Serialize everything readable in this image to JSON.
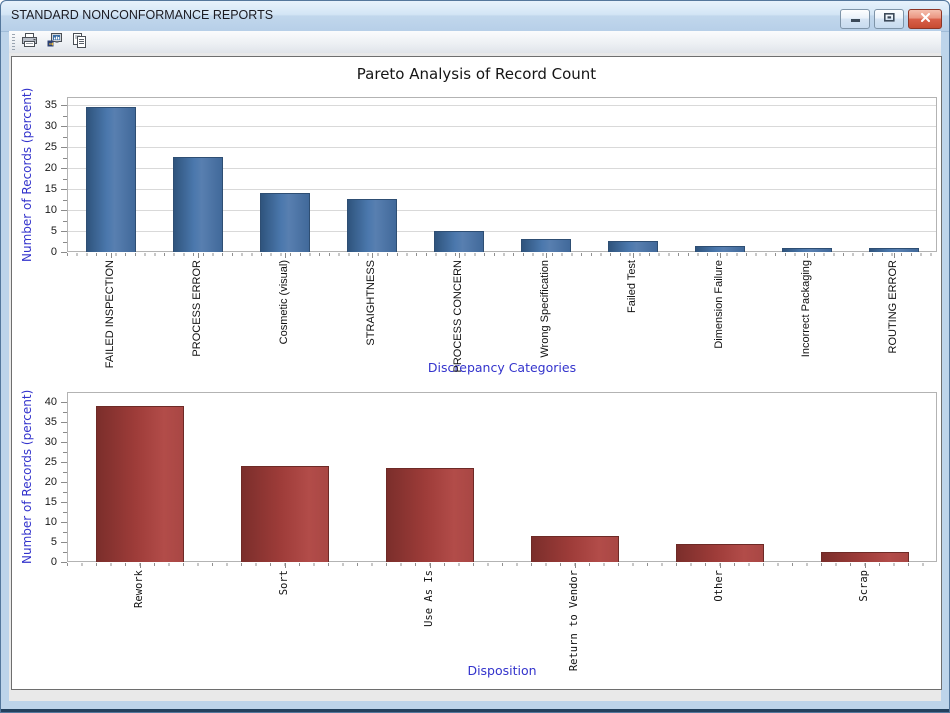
{
  "window": {
    "title": "STANDARD NONCONFORMANCE REPORTS",
    "controls": [
      {
        "name": "minimize-button",
        "icon": "minimize-icon"
      },
      {
        "name": "maximize-button",
        "icon": "restore-icon"
      },
      {
        "name": "close-button",
        "icon": "close-icon"
      }
    ]
  },
  "toolbar": {
    "buttons": [
      {
        "name": "print-button",
        "icon": "print-icon"
      },
      {
        "name": "export-graph-button",
        "icon": "export-graph-icon"
      },
      {
        "name": "copy-button",
        "icon": "copy-icon"
      }
    ]
  },
  "colors": {
    "bar_blue": "#4a77ad",
    "bar_red": "#a43d3d",
    "axis_title_blue": "#3333cc",
    "titlebar_blue": "#c9dcf0",
    "close_button_red": "#c74b31"
  },
  "chart_data": [
    {
      "type": "bar",
      "title": "Pareto Analysis of Record Count",
      "xlabel": "Discrepancy Categories",
      "ylabel": "Number of Records (percent)",
      "categories": [
        "FAILED INSPECTION",
        "PROCESS ERROR",
        "Cosmetic (visual)",
        "STRAIGHTNESS",
        "PROCESS CONCERN",
        "Wrong Specification",
        "Failed Test",
        "Dimension Failure",
        "Incorrect Packaging",
        "ROUTING ERROR"
      ],
      "values": [
        34.5,
        22.5,
        14,
        12.5,
        5,
        3,
        2.5,
        1.5,
        1,
        1
      ],
      "ylim": [
        0,
        35
      ],
      "ytick_step": 5,
      "grid": true,
      "legend": "none",
      "bar_color": "#4a77ad"
    },
    {
      "type": "bar",
      "title": "",
      "xlabel": "Disposition",
      "ylabel": "Number of Records (percent)",
      "categories": [
        "Rework",
        "Sort",
        "Use As Is",
        "Return to Vendor",
        "Other",
        "Scrap"
      ],
      "values": [
        39,
        24,
        23.5,
        6.5,
        4.5,
        2.5
      ],
      "ylim": [
        0,
        40
      ],
      "ytick_step": 5,
      "grid": false,
      "legend": "none",
      "bar_color": "#a43d3d"
    }
  ]
}
